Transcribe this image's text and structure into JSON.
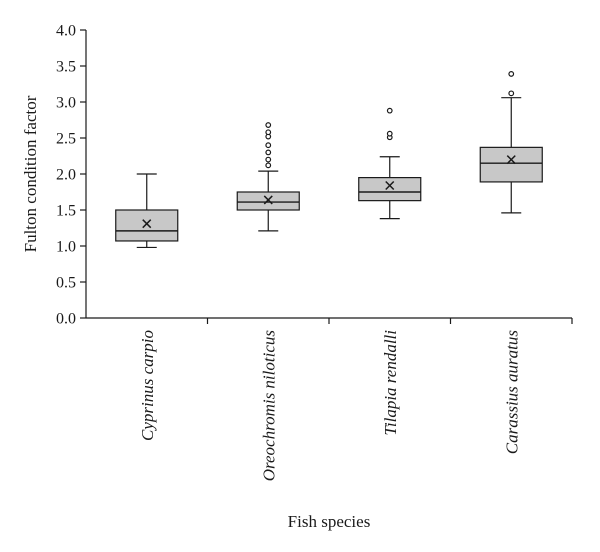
{
  "chart_data": {
    "type": "box",
    "title": "",
    "xlabel": "Fish species",
    "ylabel": "Fulton condition factor",
    "ylim": [
      0.0,
      4.0
    ],
    "yticks": [
      "0.0",
      "0.5",
      "1.0",
      "1.5",
      "2.0",
      "2.5",
      "3.0",
      "3.5",
      "4.0"
    ],
    "grid": false,
    "legend": "none",
    "box_color": "#c8c8c8",
    "line_color": "#1a1a1a",
    "categories": [
      "Cyprinus carpio",
      "Oreochromis niloticus",
      "Tilapia rendalli",
      "Carassius auratus"
    ],
    "boxes": [
      {
        "name": "Cyprinus carpio",
        "whisker_low": 0.98,
        "q1": 1.07,
        "median": 1.21,
        "q3": 1.5,
        "whisker_high": 2.0,
        "mean": 1.31,
        "outliers": []
      },
      {
        "name": "Oreochromis niloticus",
        "whisker_low": 1.21,
        "q1": 1.5,
        "median": 1.61,
        "q3": 1.75,
        "whisker_high": 2.04,
        "mean": 1.64,
        "outliers": [
          2.12,
          2.2,
          2.3,
          2.4,
          2.52,
          2.58,
          2.68
        ]
      },
      {
        "name": "Tilapia rendalli",
        "whisker_low": 1.38,
        "q1": 1.63,
        "median": 1.75,
        "q3": 1.95,
        "whisker_high": 2.24,
        "mean": 1.84,
        "outliers": [
          2.51,
          2.56,
          2.88
        ]
      },
      {
        "name": "Carassius auratus",
        "whisker_low": 1.46,
        "q1": 1.89,
        "median": 2.15,
        "q3": 2.37,
        "whisker_high": 3.06,
        "mean": 2.2,
        "outliers": [
          3.12,
          3.39
        ]
      }
    ]
  }
}
